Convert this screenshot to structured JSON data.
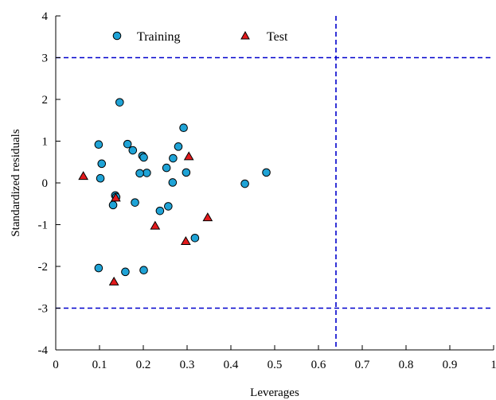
{
  "chart_data": {
    "type": "scatter",
    "xlabel": "Leverages",
    "ylabel": "Standardized residuals",
    "xlim": [
      0,
      1
    ],
    "ylim": [
      -4,
      4
    ],
    "x_ticks": [
      "0",
      "0.1",
      "0.2",
      "0.3",
      "0.4",
      "0.5",
      "0.6",
      "0.7",
      "0.8",
      "0.9",
      "1"
    ],
    "y_ticks": [
      "4",
      "3",
      "2",
      "1",
      "0",
      "-1",
      "-2",
      "-3",
      "-4"
    ],
    "grid": false,
    "legend_placement": "top-left",
    "reference_lines": {
      "horizontal": [
        3,
        -3
      ],
      "vertical": [
        0.64
      ],
      "color": "#0000cc",
      "style": "dashed"
    },
    "series": [
      {
        "name": "Training",
        "marker": "circle",
        "color": "#1fa3d6",
        "points": [
          [
            0.146,
            1.93
          ],
          [
            0.292,
            1.32
          ],
          [
            0.098,
            0.92
          ],
          [
            0.164,
            0.93
          ],
          [
            0.176,
            0.78
          ],
          [
            0.198,
            0.65
          ],
          [
            0.201,
            0.61
          ],
          [
            0.28,
            0.87
          ],
          [
            0.268,
            0.59
          ],
          [
            0.105,
            0.46
          ],
          [
            0.253,
            0.36
          ],
          [
            0.208,
            0.24
          ],
          [
            0.192,
            0.23
          ],
          [
            0.298,
            0.25
          ],
          [
            0.102,
            0.11
          ],
          [
            0.267,
            0.01
          ],
          [
            0.136,
            -0.3
          ],
          [
            0.138,
            -0.34
          ],
          [
            0.131,
            -0.53
          ],
          [
            0.181,
            -0.47
          ],
          [
            0.257,
            -0.56
          ],
          [
            0.238,
            -0.67
          ],
          [
            0.318,
            -1.32
          ],
          [
            0.098,
            -2.04
          ],
          [
            0.159,
            -2.13
          ],
          [
            0.201,
            -2.09
          ],
          [
            0.432,
            -0.02
          ],
          [
            0.481,
            0.25
          ]
        ]
      },
      {
        "name": "Test",
        "marker": "triangle",
        "color": "#e31a1c",
        "points": [
          [
            0.063,
            0.16
          ],
          [
            0.304,
            0.63
          ],
          [
            0.137,
            -0.36
          ],
          [
            0.227,
            -1.03
          ],
          [
            0.347,
            -0.83
          ],
          [
            0.297,
            -1.4
          ],
          [
            0.133,
            -2.37
          ]
        ]
      }
    ]
  }
}
